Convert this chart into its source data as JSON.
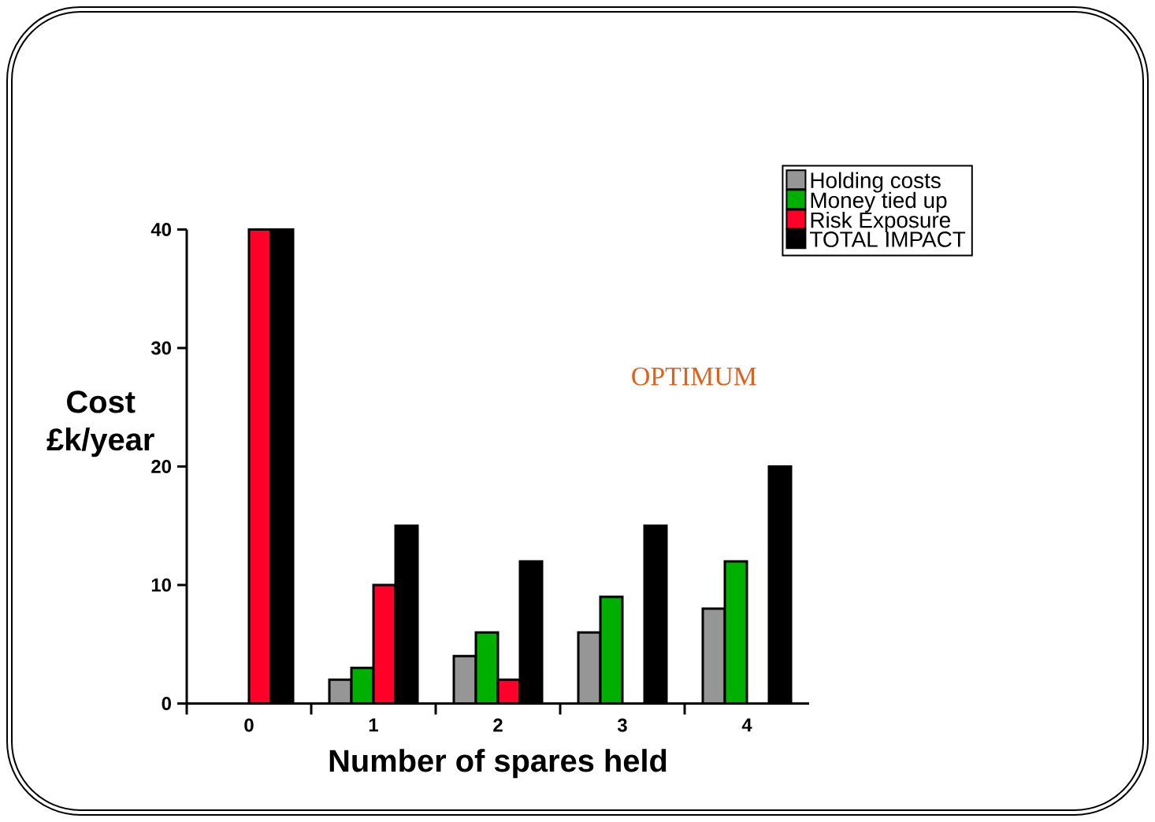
{
  "chart_data": {
    "type": "bar",
    "categories": [
      "0",
      "1",
      "2",
      "3",
      "4"
    ],
    "series": [
      {
        "name": "Holding costs",
        "color": "#969696",
        "values": [
          null,
          2,
          4,
          6,
          8
        ]
      },
      {
        "name": "Money tied up",
        "color": "#00b000",
        "values": [
          null,
          3,
          6,
          9,
          12
        ]
      },
      {
        "name": "Risk Exposure",
        "color": "#ff0028",
        "values": [
          40,
          10,
          2,
          null,
          null
        ]
      },
      {
        "name": "TOTAL IMPACT",
        "color": "#000000",
        "values": [
          40,
          15,
          12,
          15,
          20
        ]
      }
    ],
    "xlabel": "Number of spares held",
    "ylabel": "Cost £k/year",
    "ylim": [
      0,
      40
    ],
    "yticks": [
      0,
      10,
      20,
      30,
      40
    ],
    "legend": "top right",
    "annotations": [
      "OPTIMUM"
    ]
  }
}
